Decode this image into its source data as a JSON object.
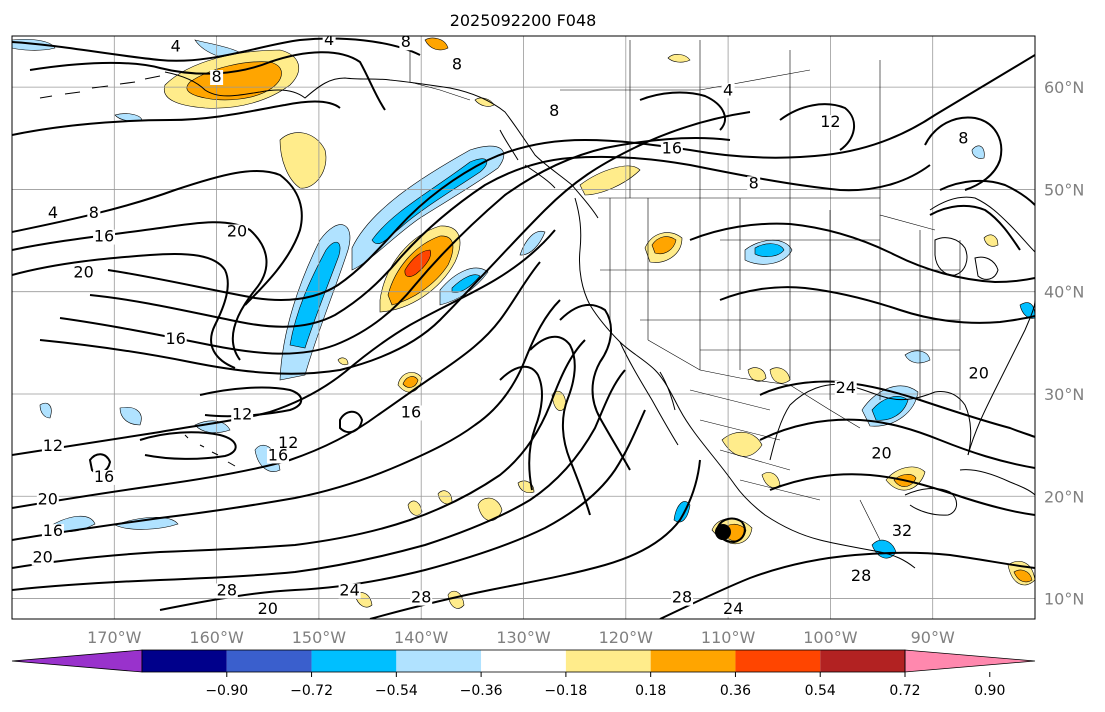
{
  "title": "2025092200 F048",
  "map": {
    "lon_range": [
      -180,
      -80
    ],
    "lat_range": [
      8,
      65
    ],
    "lon_ticks": [
      {
        "value": -170,
        "label": "170°W"
      },
      {
        "value": -160,
        "label": "160°W"
      },
      {
        "value": -150,
        "label": "150°W"
      },
      {
        "value": -140,
        "label": "140°W"
      },
      {
        "value": -130,
        "label": "130°W"
      },
      {
        "value": -120,
        "label": "120°W"
      },
      {
        "value": -110,
        "label": "110°W"
      },
      {
        "value": -100,
        "label": "100°W"
      },
      {
        "value": -90,
        "label": "90°W"
      }
    ],
    "lat_ticks": [
      {
        "value": 10,
        "label": "10°N"
      },
      {
        "value": 20,
        "label": "20°N"
      },
      {
        "value": 30,
        "label": "30°N"
      },
      {
        "value": 40,
        "label": "40°N"
      },
      {
        "value": 50,
        "label": "50°N"
      },
      {
        "value": 60,
        "label": "60°N"
      }
    ],
    "grid": true,
    "storm_marker": {
      "lon": -110.5,
      "lat": 16.5
    }
  },
  "contour_labels": [
    {
      "lon": -164,
      "lat": 63.6,
      "text": "4"
    },
    {
      "lon": -149,
      "lat": 64.2,
      "text": "4"
    },
    {
      "lon": -160,
      "lat": 60.6,
      "text": "8"
    },
    {
      "lon": -141.5,
      "lat": 64.0,
      "text": "8"
    },
    {
      "lon": -136.5,
      "lat": 61.8,
      "text": "8"
    },
    {
      "lon": -172,
      "lat": 47.3,
      "text": "8"
    },
    {
      "lon": -127,
      "lat": 57.3,
      "text": "8"
    },
    {
      "lon": -110,
      "lat": 59.3,
      "text": "4"
    },
    {
      "lon": -100,
      "lat": 56.2,
      "text": "12"
    },
    {
      "lon": -87,
      "lat": 54.6,
      "text": "8"
    },
    {
      "lon": -115.5,
      "lat": 53.6,
      "text": "16"
    },
    {
      "lon": -107.5,
      "lat": 50.2,
      "text": "8"
    },
    {
      "lon": -176,
      "lat": 47.3,
      "text": "4"
    },
    {
      "lon": -171,
      "lat": 45.0,
      "text": "16"
    },
    {
      "lon": -158,
      "lat": 45.5,
      "text": "20"
    },
    {
      "lon": -173,
      "lat": 41.5,
      "text": "20"
    },
    {
      "lon": -164,
      "lat": 35.0,
      "text": "16"
    },
    {
      "lon": -157.5,
      "lat": 27.6,
      "text": "12"
    },
    {
      "lon": -153,
      "lat": 24.8,
      "text": "12"
    },
    {
      "lon": -154,
      "lat": 23.6,
      "text": "16"
    },
    {
      "lon": -141,
      "lat": 27.8,
      "text": "16"
    },
    {
      "lon": -176,
      "lat": 24.5,
      "text": "12"
    },
    {
      "lon": -171,
      "lat": 21.5,
      "text": "16"
    },
    {
      "lon": -176.5,
      "lat": 19.3,
      "text": "20"
    },
    {
      "lon": -176,
      "lat": 16.2,
      "text": "16"
    },
    {
      "lon": -177,
      "lat": 13.6,
      "text": "20"
    },
    {
      "lon": -159,
      "lat": 10.4,
      "text": "28"
    },
    {
      "lon": -147,
      "lat": 10.4,
      "text": "24"
    },
    {
      "lon": -155,
      "lat": 8.6,
      "text": "20"
    },
    {
      "lon": -140,
      "lat": 9.7,
      "text": "28"
    },
    {
      "lon": -114.5,
      "lat": 9.7,
      "text": "28"
    },
    {
      "lon": -109.5,
      "lat": 8.6,
      "text": "24"
    },
    {
      "lon": -97,
      "lat": 11.8,
      "text": "28"
    },
    {
      "lon": -98.5,
      "lat": 30.2,
      "text": "24"
    },
    {
      "lon": -95,
      "lat": 23.8,
      "text": "20"
    },
    {
      "lon": -85.5,
      "lat": 31.6,
      "text": "20"
    },
    {
      "lon": -93,
      "lat": 16.2,
      "text": "32"
    }
  ],
  "colorbar": {
    "colors": [
      "#9932cc",
      "#00008b",
      "#3a5fcd",
      "#00bfff",
      "#b0e2ff",
      "#ffffff",
      "#ffec8b",
      "#ffa500",
      "#ff4500",
      "#b22222",
      "#ff88ae"
    ],
    "ticks": [
      "−0.90",
      "−0.72",
      "−0.54",
      "−0.36",
      "−0.18",
      "0.18",
      "0.36",
      "0.54",
      "0.72",
      "0.90"
    ]
  }
}
